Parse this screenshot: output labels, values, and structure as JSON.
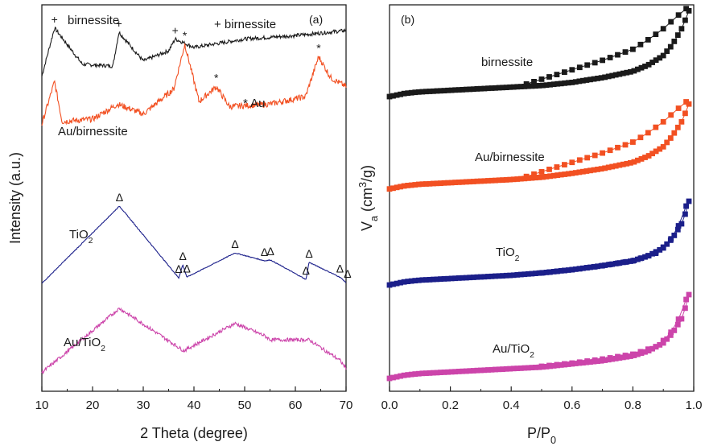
{
  "chart_data": [
    {
      "panel_label": "(a)",
      "type": "line",
      "xlabel": "2 Theta (degree)",
      "ylabel": "Intensity (a.u.)",
      "xlim": [
        10,
        70
      ],
      "xticks": [
        10,
        20,
        30,
        40,
        50,
        60,
        70
      ],
      "y_tick_labels": "none",
      "legend_notes": [
        "+ birnessite",
        "* Au"
      ],
      "series": [
        {
          "name": "birnessite",
          "color": "#1a1a1a",
          "label_parts": [
            {
              "t": "birnessite",
              "sub": false
            }
          ],
          "peaks": [
            12.5,
            25.2,
            36.3
          ],
          "marker": "+",
          "profile": {
            "x": [
              10,
              12.5,
              18,
              24,
              25.2,
              30,
              35,
              36.3,
              40,
              50,
              60,
              70
            ],
            "y": [
              28,
              85,
              42,
              40,
              80,
              46,
              58,
              72,
              62,
              72,
              76,
              82
            ]
          }
        },
        {
          "name": "Au/birnessite",
          "color": "#f25022",
          "label_parts": [
            {
              "t": "Au/birnessite",
              "sub": false
            }
          ],
          "peaks": [
            38.2,
            44.4,
            64.6
          ],
          "marker": "*",
          "profile": {
            "x": [
              10,
              12.5,
              14,
              20,
              25,
              30,
              36,
              38.2,
              41,
              44.4,
              47,
              55,
              62,
              64.6,
              67,
              70
            ],
            "y": [
              18,
              52,
              20,
              22,
              34,
              26,
              46,
              82,
              36,
              48,
              32,
              34,
              40,
              72,
              55,
              48
            ]
          }
        },
        {
          "name": "TiO2",
          "color": "#1b1f8a",
          "label_parts": [
            {
              "t": "TiO",
              "sub": false
            },
            {
              "t": "2",
              "sub": true
            }
          ],
          "peaks": [
            25.3,
            37.0,
            37.8,
            38.6,
            48.1,
            53.9,
            55.1,
            62.1,
            62.7,
            68.8,
            70.3
          ],
          "marker": "Δ",
          "profile": {
            "x": [
              10,
              25.3,
              37.0,
              37.8,
              38.6,
              48.1,
              53.9,
              55.1,
              62.1,
              62.7,
              68.8,
              70
            ],
            "y": [
              1,
              100,
              8,
              25,
              9,
              40,
              30,
              31,
              6,
              28,
              9,
              2
            ]
          }
        },
        {
          "name": "Au/TiO2",
          "color": "#cc44aa",
          "label_parts": [
            {
              "t": "Au/TiO",
              "sub": false
            },
            {
              "t": "2",
              "sub": true
            }
          ],
          "peaks": [
            25.3,
            38.0,
            48.1,
            53.9,
            55.1,
            62.7,
            68.8
          ],
          "marker": "",
          "profile": {
            "x": [
              10,
              25.3,
              38.0,
              48.1,
              53.9,
              55.1,
              62.7,
              68.8,
              70
            ],
            "y": [
              6,
              100,
              38,
              78,
              60,
              54,
              54,
              24,
              12
            ]
          }
        }
      ]
    },
    {
      "panel_label": "(b)",
      "type": "scatter",
      "xlabel_parts": [
        {
          "t": "P/P",
          "sub": false
        },
        {
          "t": "0",
          "sub": true
        }
      ],
      "ylabel_parts": [
        {
          "t": "V",
          "sub": false
        },
        {
          "t": "a",
          "sub": true
        },
        {
          "t": " (cm",
          "sub": false
        },
        {
          "t": "3",
          "sup": true
        },
        {
          "t": "/g)",
          "sub": false
        }
      ],
      "xlim": [
        0.0,
        1.0
      ],
      "xticks": [
        0.0,
        0.2,
        0.4,
        0.6,
        0.8,
        1.0
      ],
      "xtick_labels": [
        "0.0",
        "0.2",
        "0.4",
        "0.6",
        "0.8",
        "1.0"
      ],
      "y_tick_labels": "none",
      "series": [
        {
          "name": "birnessite",
          "color": "#1a1a1a",
          "label_parts": [
            {
              "t": "birnessite",
              "sub": false
            }
          ],
          "adsorption": {
            "x": [
              0.0,
              0.05,
              0.1,
              0.2,
              0.3,
              0.4,
              0.5,
              0.6,
              0.7,
              0.8,
              0.85,
              0.9,
              0.93,
              0.96,
              0.98,
              0.99
            ],
            "y": [
              100,
              104,
              106,
              108,
              110,
              112,
              114,
              118,
              124,
              132,
              140,
              152,
              166,
              186,
              204,
              216
            ]
          },
          "desorption": {
            "x": [
              0.99,
              0.97,
              0.94,
              0.9,
              0.85,
              0.8,
              0.7,
              0.6,
              0.5,
              0.45
            ],
            "y": [
              216,
              210,
              200,
              186,
              172,
              160,
              146,
              134,
              122,
              116
            ]
          }
        },
        {
          "name": "Au/birnessite",
          "color": "#f25022",
          "label_parts": [
            {
              "t": "Au/birnessite",
              "sub": false
            }
          ],
          "adsorption": {
            "x": [
              0.0,
              0.05,
              0.1,
              0.2,
              0.3,
              0.4,
              0.5,
              0.6,
              0.7,
              0.8,
              0.85,
              0.9,
              0.93,
              0.96,
              0.98,
              0.99
            ],
            "y": [
              90,
              94,
              96,
              98,
              100,
              102,
              105,
              110,
              116,
              124,
              132,
              144,
              158,
              176,
              194,
              206
            ]
          },
          "desorption": {
            "x": [
              0.99,
              0.97,
              0.94,
              0.9,
              0.85,
              0.8,
              0.7,
              0.6,
              0.5,
              0.45
            ],
            "y": [
              206,
              200,
              190,
              176,
              162,
              150,
              136,
              124,
              112,
              106
            ]
          }
        },
        {
          "name": "TiO2",
          "color": "#1b1f8a",
          "label_parts": [
            {
              "t": "TiO",
              "sub": false
            },
            {
              "t": "2",
              "sub": true
            }
          ],
          "adsorption": {
            "x": [
              0.0,
              0.05,
              0.1,
              0.2,
              0.3,
              0.4,
              0.5,
              0.6,
              0.7,
              0.8,
              0.85,
              0.9,
              0.93,
              0.96,
              0.98,
              0.99
            ],
            "y": [
              80,
              84,
              86,
              88,
              90,
              92,
              95,
              99,
              104,
              110,
              116,
              126,
              138,
              156,
              176,
              196
            ]
          },
          "desorption": {
            "x": [
              0.99,
              0.96,
              0.92,
              0.88,
              0.8,
              0.7,
              0.6,
              0.5
            ],
            "y": [
              196,
              160,
              134,
              120,
              110,
              104,
              99,
              95
            ]
          }
        },
        {
          "name": "Au/TiO2",
          "color": "#cc44aa",
          "label_parts": [
            {
              "t": "Au/TiO",
              "sub": false
            },
            {
              "t": "2",
              "sub": true
            }
          ],
          "adsorption": {
            "x": [
              0.0,
              0.05,
              0.1,
              0.2,
              0.3,
              0.4,
              0.5,
              0.6,
              0.7,
              0.8,
              0.85,
              0.9,
              0.93,
              0.96,
              0.98,
              0.99
            ],
            "y": [
              70,
              74,
              76,
              78,
              80,
              82,
              84,
              88,
              92,
              98,
              104,
              114,
              126,
              144,
              166,
              186
            ]
          },
          "desorption": {
            "x": [
              0.99,
              0.96,
              0.92,
              0.88,
              0.8,
              0.7,
              0.6,
              0.5
            ],
            "y": [
              186,
              150,
              124,
              110,
              100,
              94,
              89,
              85
            ]
          }
        }
      ]
    }
  ]
}
